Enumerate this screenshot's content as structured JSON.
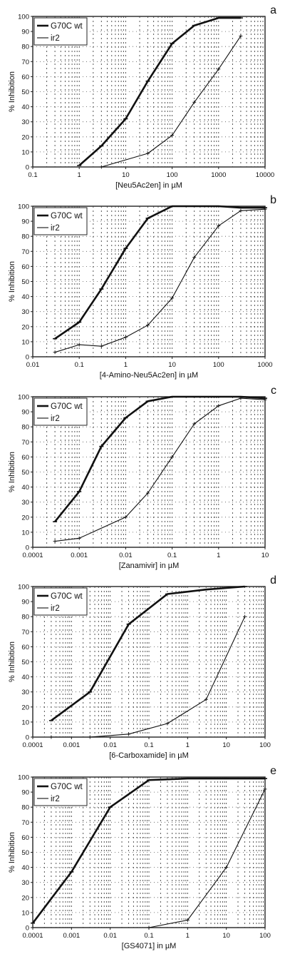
{
  "chart_data": [
    {
      "type": "line",
      "panel_label": "a",
      "xlabel": "[Neu5Ac2en] in µM",
      "ylabel": "% Inhibition",
      "xscale": "log",
      "xlim": [
        0.1,
        10000
      ],
      "ylim": [
        0,
        100
      ],
      "x_ticks": [
        "0.1",
        "1",
        "10",
        "100",
        "1000",
        "10000"
      ],
      "y_ticks": [
        "0",
        "10",
        "20",
        "30",
        "40",
        "50",
        "60",
        "70",
        "80",
        "90",
        "100"
      ],
      "grid": true,
      "legend": "top-left",
      "series": [
        {
          "name": "G70C wt",
          "style": "thick",
          "x": [
            1,
            3,
            10,
            30,
            100,
            300,
            1000,
            3000
          ],
          "y": [
            1,
            14,
            32,
            57,
            82,
            94,
            99,
            99
          ]
        },
        {
          "name": "ir2",
          "style": "thin",
          "x": [
            3,
            30,
            100,
            300,
            1000,
            3000
          ],
          "y": [
            0,
            9,
            21,
            43,
            65,
            87
          ]
        }
      ]
    },
    {
      "type": "line",
      "panel_label": "b",
      "xlabel": "[4-Amino-Neu5Ac2en] in µM",
      "ylabel": "% Inhibition",
      "xscale": "log",
      "xlim": [
        0.01,
        1000
      ],
      "ylim": [
        0,
        100
      ],
      "x_ticks": [
        "0.01",
        "0.1",
        "1",
        "10",
        "100",
        "1000"
      ],
      "y_ticks": [
        "0",
        "10",
        "20",
        "30",
        "40",
        "50",
        "60",
        "70",
        "80",
        "90",
        "100"
      ],
      "grid": true,
      "legend": "top-left",
      "series": [
        {
          "name": "G70C wt",
          "style": "thick",
          "x": [
            0.03,
            0.1,
            0.3,
            1,
            3,
            10,
            30,
            100,
            300,
            1000
          ],
          "y": [
            12,
            23,
            45,
            72,
            92,
            100,
            100,
            100,
            99,
            99
          ]
        },
        {
          "name": "ir2",
          "style": "thin",
          "x": [
            0.03,
            0.1,
            0.3,
            1,
            3,
            10,
            30,
            100,
            300,
            1000
          ],
          "y": [
            3,
            8,
            7,
            13,
            21,
            39,
            66,
            87,
            97,
            98
          ]
        }
      ]
    },
    {
      "type": "line",
      "panel_label": "c",
      "xlabel": "[Zanamivir] in µM",
      "ylabel": "% Inhibition",
      "xscale": "log",
      "xlim": [
        0.0001,
        10
      ],
      "ylim": [
        0,
        100
      ],
      "x_ticks": [
        "0.0001",
        "0.001",
        "0.01",
        "0.1",
        "1",
        "10"
      ],
      "y_ticks": [
        "0",
        "10",
        "20",
        "30",
        "40",
        "50",
        "60",
        "70",
        "80",
        "90",
        "100"
      ],
      "grid": true,
      "legend": "top-left",
      "series": [
        {
          "name": "G70C wt",
          "style": "thick",
          "x": [
            0.0003,
            0.001,
            0.003,
            0.01,
            0.03,
            0.1,
            0.3,
            1,
            3,
            10
          ],
          "y": [
            17,
            37,
            67,
            86,
            97,
            100,
            100,
            100,
            100,
            99
          ]
        },
        {
          "name": "ir2",
          "style": "thin",
          "x": [
            0.0003,
            0.001,
            0.01,
            0.03,
            0.1,
            0.3,
            1,
            3,
            10
          ],
          "y": [
            4,
            6,
            20,
            36,
            60,
            82,
            94,
            99,
            98
          ]
        }
      ]
    },
    {
      "type": "line",
      "panel_label": "d",
      "xlabel": "[6-Carboxamide] in µM",
      "ylabel": "% Inhibition",
      "xscale": "log",
      "xlim": [
        0.0001,
        100
      ],
      "ylim": [
        0,
        100
      ],
      "x_ticks": [
        "0.0001",
        "0.001",
        "0.01",
        "0.1",
        "1",
        "10",
        "100"
      ],
      "y_ticks": [
        "0",
        "10",
        "20",
        "30",
        "40",
        "50",
        "60",
        "70",
        "80",
        "90",
        "100"
      ],
      "grid": true,
      "legend": "top-left",
      "series": [
        {
          "name": "G70C wt",
          "style": "thick",
          "x": [
            0.0003,
            0.003,
            0.03,
            0.3,
            3,
            30
          ],
          "y": [
            11,
            30,
            75,
            95,
            98,
            100
          ]
        },
        {
          "name": "ir2",
          "style": "thin",
          "x": [
            0.0003,
            0.003,
            0.03,
            0.3,
            3,
            30
          ],
          "y": [
            0,
            0,
            2,
            9,
            25,
            80
          ]
        }
      ]
    },
    {
      "type": "line",
      "panel_label": "e",
      "xlabel": "[GS4071] in µM",
      "ylabel": "% Inhibition",
      "xscale": "log",
      "xlim": [
        0.0001,
        100
      ],
      "ylim": [
        0,
        100
      ],
      "x_ticks": [
        "0.0001",
        "0.001",
        "0.01",
        "0.1",
        "1",
        "10",
        "100"
      ],
      "y_ticks": [
        "0",
        "10",
        "20",
        "30",
        "40",
        "50",
        "60",
        "70",
        "80",
        "90",
        "100"
      ],
      "grid": true,
      "legend": "top-left",
      "series": [
        {
          "name": "G70C wt",
          "style": "thick",
          "x": [
            0.0001,
            0.001,
            0.01,
            0.1,
            1,
            10,
            100
          ],
          "y": [
            3,
            37,
            80,
            98,
            99,
            99,
            99
          ]
        },
        {
          "name": "ir2",
          "style": "thin",
          "x": [
            0.1,
            1,
            10,
            100
          ],
          "y": [
            0,
            5,
            40,
            92
          ]
        }
      ]
    }
  ]
}
